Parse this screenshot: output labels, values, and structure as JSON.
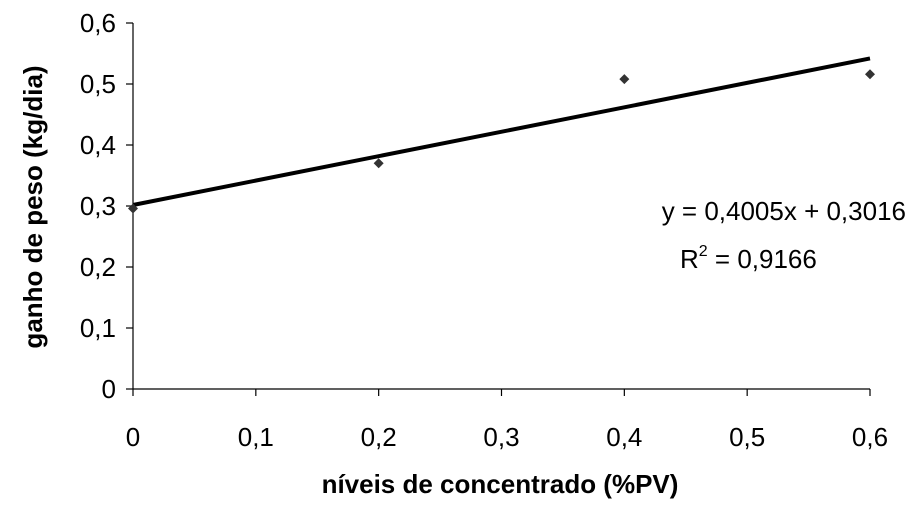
{
  "chart_data": {
    "type": "scatter",
    "title": "",
    "xlabel": "níveis de concentrado (%PV)",
    "ylabel": "ganho de peso (kg/dia)",
    "xlim": [
      0,
      0.6
    ],
    "ylim": [
      0,
      0.6
    ],
    "x_ticks": [
      "0",
      "0,1",
      "0,2",
      "0,3",
      "0,4",
      "0,5",
      "0,6"
    ],
    "y_ticks": [
      "0",
      "0,1",
      "0,2",
      "0,3",
      "0,4",
      "0,5",
      "0,6"
    ],
    "grid": false,
    "legend": "none",
    "series": [
      {
        "x": [
          0,
          0.2,
          0.4,
          0.6
        ],
        "y": [
          0.296,
          0.37,
          0.508,
          0.516
        ]
      }
    ],
    "trendline": {
      "type": "linear",
      "slope": 0.4005,
      "intercept": 0.3016,
      "equation": "y = 0,4005x + 0,3016",
      "r2_prefix": "R",
      "r2_sup": "2",
      "r2_value": " = 0,9166"
    },
    "colors": {
      "marker": "#333333",
      "line": "#000000",
      "axis": "#000000"
    }
  }
}
